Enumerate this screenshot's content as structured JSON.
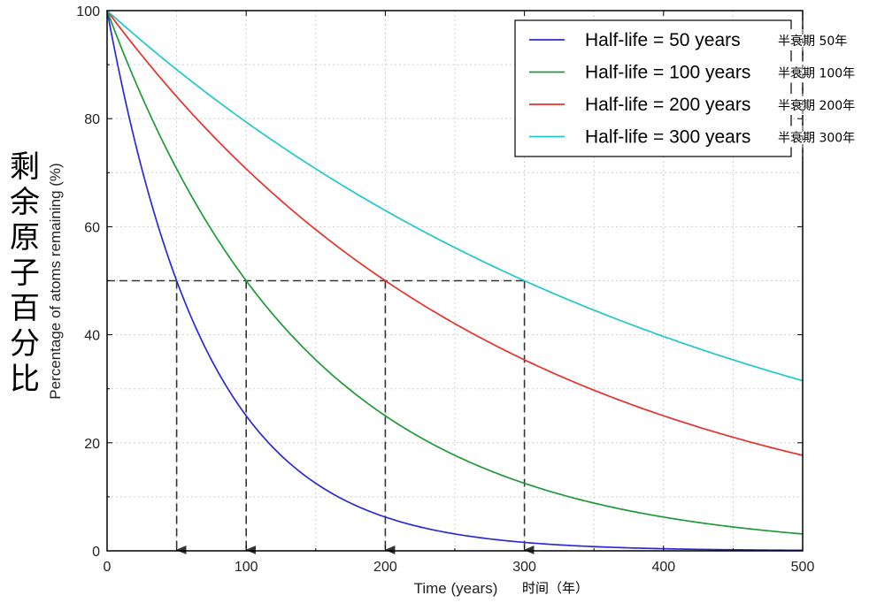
{
  "chart_data": {
    "type": "line",
    "xlabel": "Time (years)",
    "xlabel_cn": "时间（年）",
    "ylabel": "Percentage of atoms remaining (%)",
    "ylabel_cn": "剩余原子百分比",
    "xlim": [
      0,
      500
    ],
    "ylim": [
      0,
      100
    ],
    "xticks": [
      "0",
      "100",
      "200",
      "300",
      "400",
      "500"
    ],
    "yticks": [
      "0",
      "20",
      "40",
      "60",
      "80",
      "100"
    ],
    "grid": true,
    "legend_position": "top-right",
    "series": [
      {
        "name": "Half-life = 50 years",
        "name_cn": "半衰期 50年",
        "half_life": 50,
        "color": "#2b2bd6"
      },
      {
        "name": "Half-life = 100 years",
        "name_cn": "半衰期 100年",
        "half_life": 100,
        "color": "#1f9a3a"
      },
      {
        "name": "Half-life = 200 years",
        "name_cn": "半衰期 200年",
        "half_life": 200,
        "color": "#e8302b"
      },
      {
        "name": "Half-life = 300 years",
        "name_cn": "半衰期 300年",
        "half_life": 300,
        "color": "#1fc8c8"
      }
    ],
    "annotations": {
      "half_level": 50,
      "markers_x": [
        50,
        100,
        200,
        300
      ],
      "line_color": "#333333"
    }
  }
}
